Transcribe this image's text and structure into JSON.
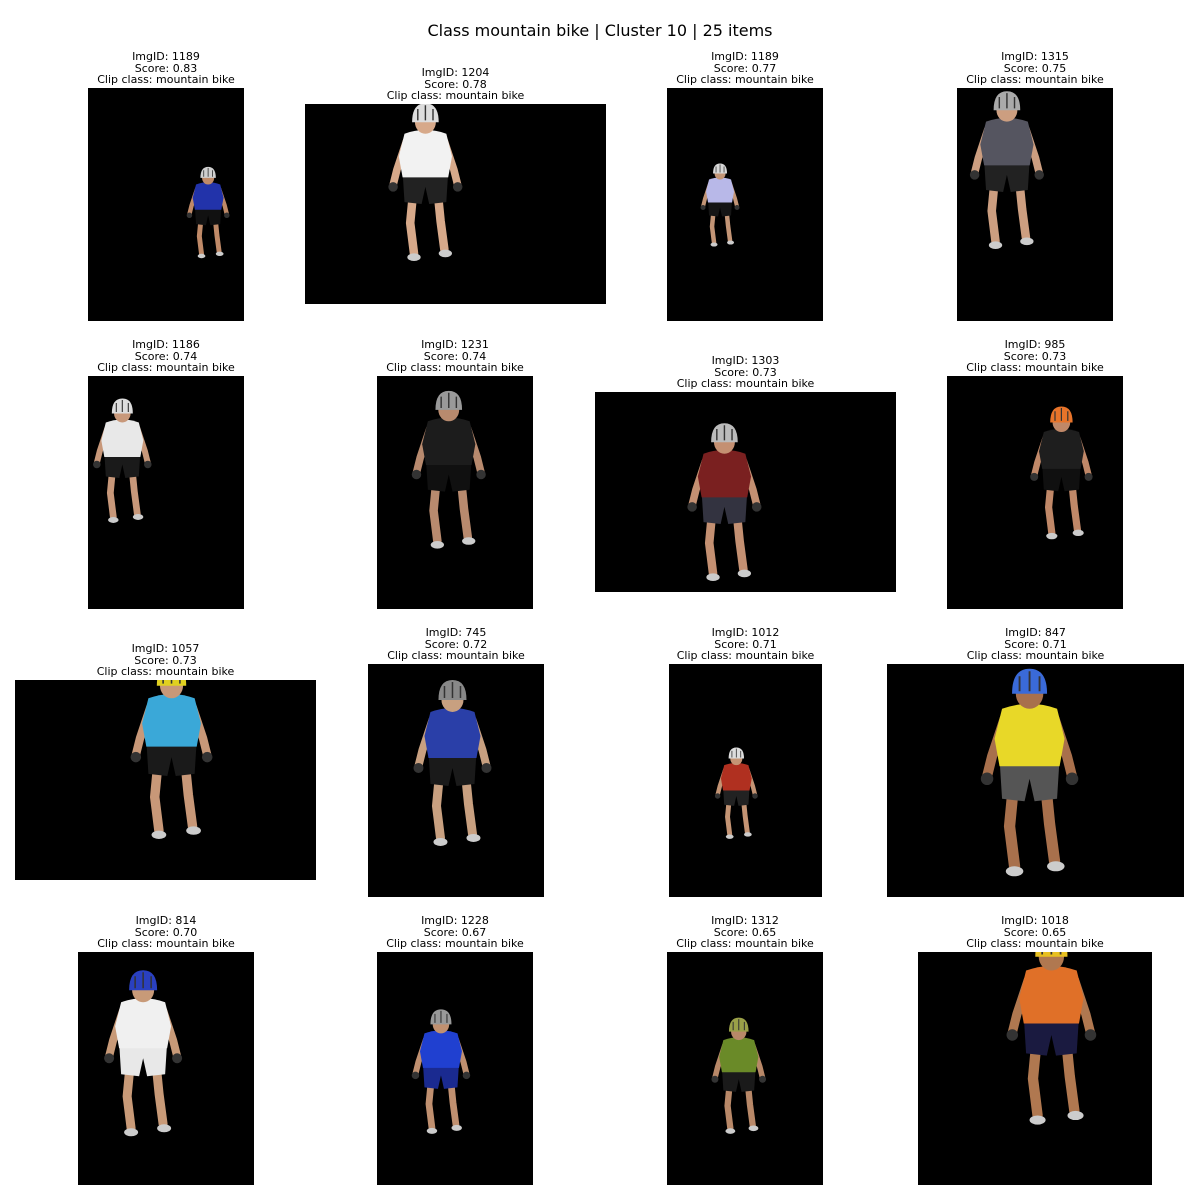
{
  "figure": {
    "title": "Class mountain bike | Cluster 10 | 25 items"
  },
  "tiles": [
    {
      "img_id": "ImgID: 1189",
      "score": "Score: 0.83",
      "clip_class": "Clip class: mountain bike",
      "helmet": "#cfcfcf",
      "shirt": "#2233aa",
      "shorts": "#111111",
      "skin": "#c08a68"
    },
    {
      "img_id": "ImgID: 1204",
      "score": "Score: 0.78",
      "clip_class": "Clip class: mountain bike",
      "helmet": "#dddddd",
      "shirt": "#f2f2f2",
      "shorts": "#222222",
      "skin": "#d7a98a"
    },
    {
      "img_id": "ImgID: 1189",
      "score": "Score: 0.77",
      "clip_class": "Clip class: mountain bike",
      "helmet": "#d8d8d8",
      "shirt": "#b8b8e8",
      "shorts": "#151515",
      "skin": "#c39576"
    },
    {
      "img_id": "ImgID: 1315",
      "score": "Score: 0.75",
      "clip_class": "Clip class: mountain bike",
      "helmet": "#aaaaaa",
      "shirt": "#555560",
      "shorts": "#222222",
      "skin": "#cc9e80"
    },
    {
      "img_id": "ImgID: 1186",
      "score": "Score: 0.74",
      "clip_class": "Clip class: mountain bike",
      "helmet": "#dcdcdc",
      "shirt": "#e8e8e8",
      "shorts": "#1a1a1a",
      "skin": "#c8987a"
    },
    {
      "img_id": "ImgID: 1231",
      "score": "Score: 0.74",
      "clip_class": "Clip class: mountain bike",
      "helmet": "#999999",
      "shirt": "#1c1c1c",
      "shorts": "#101010",
      "skin": "#b88a6e"
    },
    {
      "img_id": "ImgID: 1303",
      "score": "Score: 0.73",
      "clip_class": "Clip class: mountain bike",
      "helmet": "#bbbbbb",
      "shirt": "#7a2020",
      "shorts": "#333340",
      "skin": "#c49072"
    },
    {
      "img_id": "ImgID: 985",
      "score": "Score: 0.73",
      "clip_class": "Clip class: mountain bike",
      "helmet": "#e8742a",
      "shirt": "#1e1e1e",
      "shorts": "#101010",
      "skin": "#c08868"
    },
    {
      "img_id": "ImgID: 1057",
      "score": "Score: 0.73",
      "clip_class": "Clip class: mountain bike",
      "helmet": "#e0d020",
      "shirt": "#3aa8d8",
      "shorts": "#1a1a1a",
      "skin": "#c89878"
    },
    {
      "img_id": "ImgID: 745",
      "score": "Score: 0.72",
      "clip_class": "Clip class: mountain bike",
      "helmet": "#888888",
      "shirt": "#2a3fa8",
      "shorts": "#1a1a1a",
      "skin": "#c8a080"
    },
    {
      "img_id": "ImgID: 1012",
      "score": "Score: 0.71",
      "clip_class": "Clip class: mountain bike",
      "helmet": "#dddddd",
      "shirt": "#b03020",
      "shorts": "#222222",
      "skin": "#c49474"
    },
    {
      "img_id": "ImgID: 847",
      "score": "Score: 0.71",
      "clip_class": "Clip class: mountain bike",
      "helmet": "#3a6ad8",
      "shirt": "#e8d828",
      "shorts": "#555555",
      "skin": "#a8704c"
    },
    {
      "img_id": "ImgID: 814",
      "score": "Score: 0.70",
      "clip_class": "Clip class: mountain bike",
      "helmet": "#2a40c0",
      "shirt": "#f0f0f0",
      "shorts": "#e8e8e8",
      "skin": "#c89a78"
    },
    {
      "img_id": "ImgID: 1228",
      "score": "Score: 0.67",
      "clip_class": "Clip class: mountain bike",
      "helmet": "#999999",
      "shirt": "#2040d0",
      "shorts": "#1a2a90",
      "skin": "#c09070"
    },
    {
      "img_id": "ImgID: 1312",
      "score": "Score: 0.65",
      "clip_class": "Clip class: mountain bike",
      "helmet": "#9aa048",
      "shirt": "#6a8a28",
      "shorts": "#1a1a1a",
      "skin": "#b88868"
    },
    {
      "img_id": "ImgID: 1018",
      "score": "Score: 0.65",
      "clip_class": "Clip class: mountain bike",
      "helmet": "#e8c020",
      "shirt": "#e07028",
      "shorts": "#1a1a40",
      "skin": "#b07850"
    }
  ]
}
